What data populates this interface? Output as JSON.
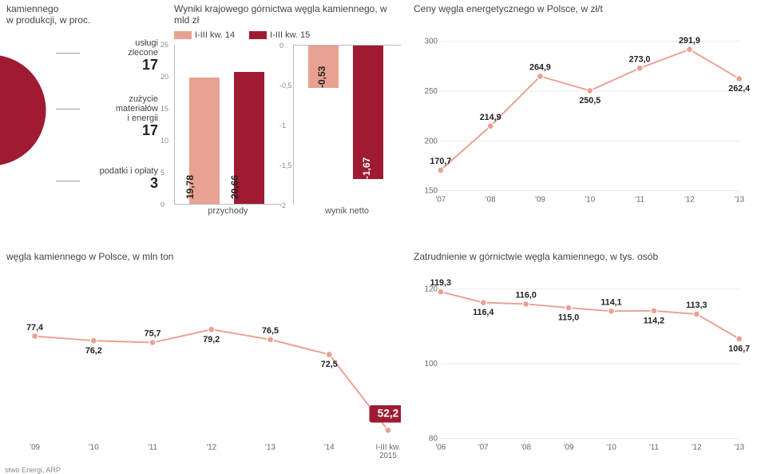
{
  "colors": {
    "accent_light": "#e9a193",
    "accent_dark": "#9e1b32",
    "olive": "#a8983f",
    "grid": "#e8e8e8",
    "axis": "#bbbbbb",
    "text": "#333333"
  },
  "pie": {
    "title": "kamiennego\nw produkcji, w proc.",
    "slices": [
      {
        "label": "usługi\nzlecone",
        "value": 17,
        "color": "#e9a193"
      },
      {
        "label": "zużycie\nmateriałów\ni energii",
        "value": 17,
        "color": "#a8983f"
      },
      {
        "label": "podatki i opłaty",
        "value": 3,
        "color": "#e9a193"
      }
    ],
    "remainder_color": "#9e1b32"
  },
  "finance": {
    "title": "Wyniki krajowego górnictwa węgla kamiennego, w mld zł",
    "legend": [
      {
        "label": "I-III kw. 14",
        "color": "#e9a193"
      },
      {
        "label": "I-III kw. 15",
        "color": "#9e1b32"
      }
    ],
    "revenue": {
      "label": "przychody",
      "ylim": [
        0,
        25
      ],
      "yticks": [
        0,
        5,
        10,
        15,
        20,
        25
      ],
      "bars": [
        {
          "value": 19.78,
          "label": "19,78",
          "color": "#e9a193"
        },
        {
          "value": 20.66,
          "label": "20,66",
          "color": "#9e1b32"
        }
      ]
    },
    "netresult": {
      "label": "wynik netto",
      "ylim": [
        -2.0,
        0
      ],
      "yticks": [
        0,
        -0.5,
        -1.0,
        -1.5,
        -2.0
      ],
      "bars": [
        {
          "value": -0.53,
          "label": "-0,53",
          "color": "#e9a193"
        },
        {
          "value": -1.67,
          "label": "-1,67",
          "color": "#9e1b32"
        }
      ]
    }
  },
  "prices": {
    "title": "Ceny węgla energetycznego w Polsce, w zł/t",
    "ylim": [
      150,
      300
    ],
    "yticks": [
      150,
      200,
      250,
      300
    ],
    "x": [
      "'07",
      "'08",
      "'09",
      "'10",
      "'11",
      "'12",
      "'13"
    ],
    "values": [
      170.7,
      214.9,
      264.9,
      250.5,
      273.0,
      291.9,
      262.4
    ],
    "labels": [
      "170,7",
      "214,9",
      "264,9",
      "250,5",
      "273,0",
      "291,9",
      "262,4"
    ],
    "label_pos": [
      "above",
      "above",
      "above",
      "below",
      "above",
      "above",
      "below"
    ],
    "color": "#e9a193"
  },
  "production": {
    "title": "węgla kamiennego w Polsce, w mln ton",
    "ylim": [
      50,
      90
    ],
    "x": [
      "'09",
      "'10",
      "'11",
      "'12",
      "'13",
      "'14",
      "I-III kw.\n2015"
    ],
    "values": [
      77.4,
      76.2,
      75.7,
      79.2,
      76.5,
      72.5,
      52.2
    ],
    "labels": [
      "77,4",
      "76,2",
      "75,7",
      "79,2",
      "76,5",
      "72,5",
      "52,2"
    ],
    "label_pos": [
      "above",
      "below",
      "above",
      "below",
      "above",
      "below",
      "callout"
    ],
    "color": "#e9a193",
    "source": "stwo Energi, ARP"
  },
  "employment": {
    "title": "Zatrudnienie w górnictwie węgla kamiennego, w tys. osób",
    "ylim": [
      80,
      120
    ],
    "yticks": [
      80,
      100,
      120
    ],
    "x": [
      "'06",
      "'07",
      "'08",
      "'09",
      "'10",
      "'11",
      "'12",
      "'13"
    ],
    "values": [
      119.3,
      116.4,
      116.0,
      115.0,
      114.1,
      114.2,
      113.3,
      106.7
    ],
    "labels": [
      "119,3",
      "116,4",
      "116,0",
      "115,0",
      "114,1",
      "114,2",
      "113,3",
      "106,7"
    ],
    "label_pos": [
      "above",
      "below",
      "above",
      "below",
      "above",
      "below",
      "above",
      "below"
    ],
    "color": "#e9a193"
  }
}
